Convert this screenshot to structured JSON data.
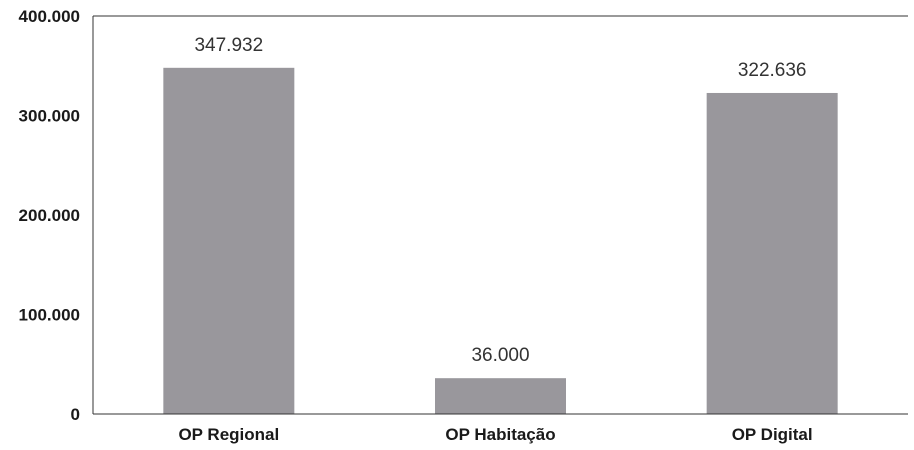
{
  "chart_data": {
    "type": "bar",
    "categories": [
      "OP Regional",
      "OP Habitação",
      "OP Digital"
    ],
    "values": [
      347932,
      36000,
      322636
    ],
    "data_labels": [
      "347.932",
      "36.000",
      "322.636"
    ],
    "yticks": [
      0,
      100000,
      200000,
      300000,
      400000
    ],
    "ytick_labels": [
      "0",
      "100.000",
      "200.000",
      "300.000",
      "400.000"
    ],
    "ylim": [
      0,
      400000
    ],
    "grid": false,
    "bar_color": "#99979c"
  }
}
